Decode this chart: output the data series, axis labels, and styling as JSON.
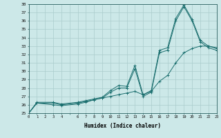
{
  "xlabel": "Humidex (Indice chaleur)",
  "bg_color": "#cce8e8",
  "line_color": "#1a6e6e",
  "grid_color": "#aacccc",
  "xlim": [
    0,
    23
  ],
  "ylim": [
    25,
    38
  ],
  "yticks": [
    25,
    26,
    27,
    28,
    29,
    30,
    31,
    32,
    33,
    34,
    35,
    36,
    37,
    38
  ],
  "xtick_labels": [
    "0",
    "1",
    "2",
    "3",
    "4",
    "",
    "6",
    "7",
    "8",
    "9",
    "10",
    "11",
    "12",
    "13",
    "14",
    "15",
    "16",
    "17",
    "18",
    "19",
    "20",
    "21",
    "22",
    "23"
  ],
  "line1_x": [
    0,
    1,
    3,
    4,
    6,
    7,
    8,
    9,
    10,
    11,
    12,
    13,
    14,
    15,
    16,
    17,
    18,
    19,
    20,
    21,
    22,
    23
  ],
  "line1_y": [
    25.0,
    26.3,
    26.3,
    26.1,
    26.3,
    26.5,
    26.7,
    26.9,
    27.7,
    28.3,
    28.2,
    30.7,
    27.2,
    27.7,
    32.5,
    32.8,
    36.3,
    37.9,
    36.2,
    33.7,
    33.0,
    32.8
  ],
  "line2_x": [
    0,
    1,
    3,
    4,
    6,
    7,
    8,
    9,
    10,
    11,
    12,
    13,
    14,
    15,
    16,
    17,
    18,
    19,
    20,
    21,
    22,
    23
  ],
  "line2_y": [
    25.0,
    26.2,
    26.2,
    26.0,
    26.2,
    26.4,
    26.6,
    26.8,
    27.5,
    28.0,
    28.0,
    30.3,
    27.0,
    27.5,
    32.2,
    32.5,
    36.0,
    37.7,
    36.0,
    33.5,
    32.8,
    32.5
  ],
  "line3_x": [
    0,
    1,
    3,
    4,
    6,
    7,
    8,
    9,
    10,
    11,
    12,
    13,
    14,
    15,
    16,
    17,
    18,
    19,
    20,
    21,
    22,
    23
  ],
  "line3_y": [
    25.0,
    26.2,
    26.0,
    25.9,
    26.1,
    26.3,
    26.6,
    26.8,
    27.0,
    27.2,
    27.4,
    27.6,
    27.2,
    27.6,
    28.8,
    29.5,
    31.0,
    32.2,
    32.7,
    33.0,
    33.0,
    32.7
  ]
}
